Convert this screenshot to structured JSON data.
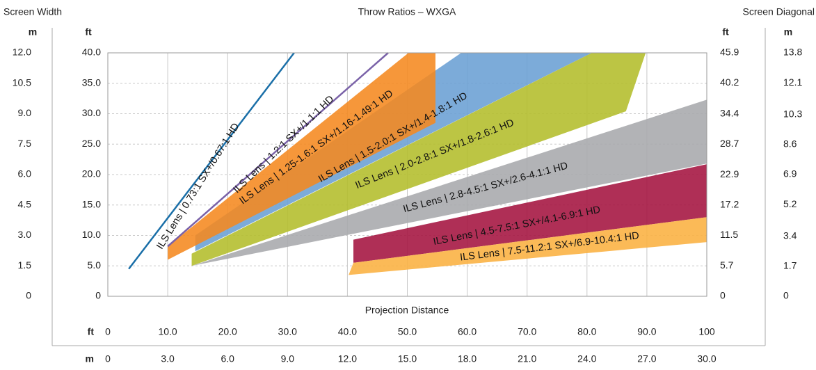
{
  "chart_data": {
    "type": "area",
    "title": "Throw Ratios – WXGA",
    "left_label": "Screen Width",
    "right_label": "Screen Diagonal",
    "x_label": "Projection Distance",
    "unit_m": "m",
    "unit_ft": "ft",
    "xlim": [
      0,
      100
    ],
    "xticks": [
      0,
      {
        "value": 10,
        "label": "10.0"
      },
      {
        "value": 20,
        "label": "20.0"
      },
      {
        "value": 30,
        "label": "30.0"
      },
      {
        "value": 40,
        "label": "40.0"
      },
      {
        "value": 50,
        "label": "50.0"
      },
      {
        "value": 60,
        "label": "60.0"
      },
      {
        "value": 70,
        "label": "70.0"
      },
      {
        "value": 80,
        "label": "80.0"
      },
      {
        "value": 90,
        "label": "90.0"
      },
      100
    ],
    "x2lim": [
      0,
      30
    ],
    "x2ticks": [
      0,
      {
        "value": 3,
        "label": "3.0"
      },
      {
        "value": 6,
        "label": "6.0"
      },
      {
        "value": 9,
        "label": "9.0"
      },
      {
        "value": 12,
        "label": "12.0"
      },
      {
        "value": 15,
        "label": "15.0"
      },
      {
        "value": 18,
        "label": "18.0"
      },
      {
        "value": 21,
        "label": "21.0"
      },
      {
        "value": 24,
        "label": "24.0"
      },
      {
        "value": 27,
        "label": "27.0"
      },
      {
        "value": 30,
        "label": "30.0"
      }
    ],
    "ylim": [
      0,
      40
    ],
    "yticks": [
      0,
      {
        "value": 5,
        "label": "5.0"
      },
      {
        "value": 10,
        "label": "10.0"
      },
      {
        "value": 15,
        "label": "15.0"
      },
      {
        "value": 20,
        "label": "20.0"
      },
      {
        "value": 25,
        "label": "25.0"
      },
      {
        "value": 30,
        "label": "30.0"
      },
      {
        "value": 35,
        "label": "35.0"
      },
      {
        "value": 40,
        "label": "40.0"
      }
    ],
    "ymlim": [
      0,
      12
    ],
    "ymticks": [
      0,
      1.5,
      {
        "value": 3,
        "label": "3.0"
      },
      4.5,
      {
        "value": 6,
        "label": "6.0"
      },
      7.5,
      {
        "value": 9,
        "label": "9.0"
      },
      10.5,
      {
        "value": 12,
        "label": "12.0"
      }
    ],
    "y2lim": [
      0,
      45.9
    ],
    "y2ticks": [
      0,
      5.7,
      11.5,
      17.2,
      22.9,
      28.7,
      34.4,
      40.2,
      45.9
    ],
    "y2mlim": [
      0,
      13.8
    ],
    "y2mticks": [
      0,
      1.7,
      3.4,
      5.2,
      6.9,
      8.6,
      10.3,
      12.1,
      13.8
    ],
    "grid": true,
    "series": [
      {
        "name": "ILS Lens | 2.8-4.5:1 SX+/2.6-4.1:1 HD",
        "kind": "band",
        "color": "#a7a9ac",
        "x": [
          14,
          100,
          100
        ],
        "y": [
          5,
          32.3,
          21.8
        ]
      },
      {
        "name": "ILS Lens | 2.0-2.8:1 SX+/1.8-2.6:1 HD",
        "kind": "band",
        "color": "#b3bd2a",
        "x": [
          14,
          14,
          80.8,
          89.8,
          86.5
        ],
        "y": [
          5,
          7,
          40,
          40,
          30.4
        ]
      },
      {
        "name": "ILS Lens | 1.5-2.0:1 SX+/1.4-1.8:1 HD",
        "kind": "band",
        "color": "#6a9fd4",
        "x": [
          14.6,
          14.6,
          59,
          80.8
        ],
        "y": [
          7.4,
          10,
          40,
          40
        ]
      },
      {
        "name": "ILS Lens | 1.25-1.6:1 SX+/1.16-1.49:1 HD",
        "kind": "band",
        "color": "#f5891f",
        "x": [
          10,
          10,
          50.2,
          54.7,
          54.7
        ],
        "y": [
          6,
          8.2,
          40,
          40,
          28.5
        ]
      },
      {
        "name": "ILS Lens | 4.5-7.5:1 SX+/4.1-6.9:1 HD",
        "kind": "band",
        "color": "#a4123f",
        "x": [
          41,
          41,
          100,
          100
        ],
        "y": [
          5.5,
          9.3,
          21.7,
          13
        ]
      },
      {
        "name": "ILS Lens | 7.5-11.2:1 SX+/6.9-10.4:1 HD",
        "kind": "band",
        "color": "#fbb040",
        "x": [
          40.2,
          41,
          100,
          100
        ],
        "y": [
          3.5,
          5.5,
          13,
          8.9
        ]
      },
      {
        "name": "ILS Lens | 1.2:1 SX+/1.1:1 HD",
        "kind": "line",
        "color": "#7a62a8",
        "x": [
          10,
          46.8
        ],
        "y": [
          8.2,
          40
        ]
      },
      {
        "name": "ILS Lens | 0.73:1 SX+/0.67:1 HD",
        "kind": "line",
        "color": "#1a6fa8",
        "x": [
          3.5,
          31.1
        ],
        "y": [
          4.5,
          40
        ]
      }
    ]
  }
}
